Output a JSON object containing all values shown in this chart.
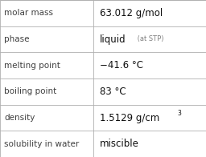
{
  "rows": [
    {
      "label": "molar mass",
      "value": "63.012 g/mol",
      "type": "plain"
    },
    {
      "label": "phase",
      "value": "liquid",
      "type": "suffix",
      "suffix": " (at STP)"
    },
    {
      "label": "melting point",
      "value": "−41.6 °C",
      "type": "plain"
    },
    {
      "label": "boiling point",
      "value": "83 °C",
      "type": "plain"
    },
    {
      "label": "density",
      "value": "1.5129 g/cm",
      "type": "super",
      "super": "3"
    },
    {
      "label": "solubility in water",
      "value": "miscible",
      "type": "plain"
    }
  ],
  "col_split": 0.455,
  "bg_color": "#ffffff",
  "grid_color": "#b0b0b0",
  "label_color": "#404040",
  "value_color": "#101010",
  "suffix_color": "#808080",
  "label_fontsize": 7.5,
  "value_fontsize": 8.5,
  "suffix_fontsize": 6.0,
  "super_fontsize": 5.5
}
